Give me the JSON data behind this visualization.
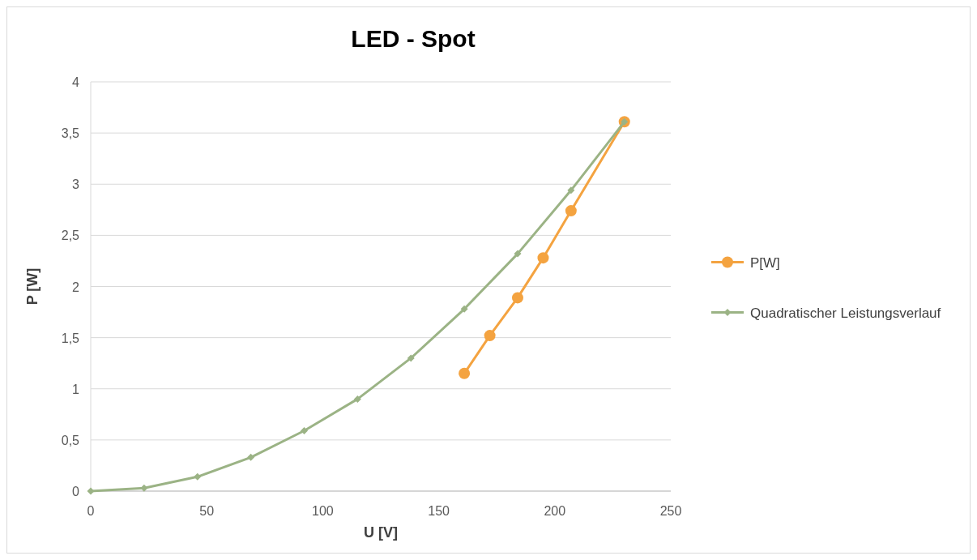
{
  "chart_data": {
    "type": "line",
    "title": "LED - Spot",
    "xlabel": "U [V]",
    "ylabel": "P [W]",
    "xlim": [
      0,
      250
    ],
    "xticks": [
      0,
      50,
      100,
      150,
      200,
      250
    ],
    "ylim": [
      0,
      4
    ],
    "yticks": [
      0,
      {
        "value": 0.5,
        "label": "0,5"
      },
      1,
      {
        "value": 1.5,
        "label": "1,5"
      },
      2,
      {
        "value": 2.5,
        "label": "2,5"
      },
      3,
      {
        "value": 3.5,
        "label": "3,5"
      },
      4
    ],
    "grid": "y",
    "legend": "right",
    "series": [
      {
        "name": "P[W]",
        "color": "#f4a340",
        "marker": "circle",
        "x": [
          161,
          172,
          184,
          195,
          207,
          230
        ],
        "values": [
          1.15,
          1.52,
          1.89,
          2.28,
          2.74,
          3.61
        ]
      },
      {
        "name": "Quadratischer Leistungsverlauf",
        "color": "#9bb385",
        "marker": "diamond",
        "x": [
          0,
          23,
          46,
          69,
          92,
          115,
          138,
          161,
          184,
          207,
          230
        ],
        "values": [
          0,
          0.03,
          0.14,
          0.33,
          0.59,
          0.9,
          1.3,
          1.78,
          2.32,
          2.94,
          3.61
        ]
      }
    ]
  }
}
